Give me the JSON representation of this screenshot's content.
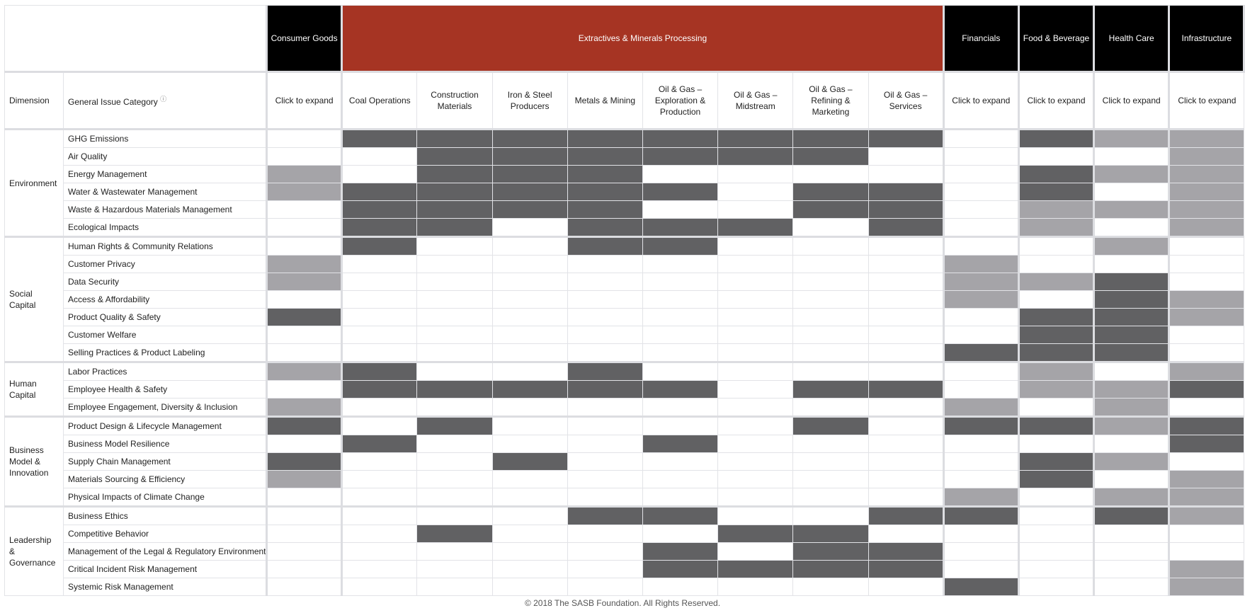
{
  "colors": {
    "sector_header": "#000000",
    "extractives_header": "#a63423",
    "dark": "#616163",
    "light": "#a5a4a8",
    "empty": "#ffffff"
  },
  "header": {
    "dimension_label": "Dimension",
    "category_label": "General Issue Category",
    "info_icon": "info-icon",
    "info_glyph": "ⓘ",
    "sectors": [
      {
        "name": "Consumer Goods",
        "span": 1,
        "red": false
      },
      {
        "name": "Extractives & Minerals Processing",
        "span": 8,
        "red": true
      },
      {
        "name": "Financials",
        "span": 1,
        "red": false
      },
      {
        "name": "Food & Beverage",
        "span": 1,
        "red": false
      },
      {
        "name": "Health Care",
        "span": 1,
        "red": false
      },
      {
        "name": "Infrastructure",
        "span": 1,
        "red": false
      }
    ],
    "columns": [
      {
        "label": "Click to expand",
        "group_start": true
      },
      {
        "label": "Coal Operations",
        "group_start": true
      },
      {
        "label": "Construction Materials"
      },
      {
        "label": "Iron & Steel Producers"
      },
      {
        "label": "Metals & Mining"
      },
      {
        "label": "Oil & Gas – Exploration & Production"
      },
      {
        "label": "Oil & Gas – Midstream"
      },
      {
        "label": "Oil & Gas – Refining & Marketing"
      },
      {
        "label": "Oil & Gas – Services"
      },
      {
        "label": "Click to expand",
        "group_start": true
      },
      {
        "label": "Click to expand",
        "group_start": true
      },
      {
        "label": "Click to expand",
        "group_start": true
      },
      {
        "label": "Click to expand",
        "group_start": true
      }
    ]
  },
  "legend_levels": {
    "0": "not material",
    "1": "light shade",
    "2": "dark shade"
  },
  "dimensions": [
    {
      "name": "Environment",
      "rows": [
        {
          "category": "GHG Emissions",
          "cells": [
            0,
            2,
            2,
            2,
            2,
            2,
            2,
            2,
            2,
            0,
            2,
            1,
            1
          ]
        },
        {
          "category": "Air Quality",
          "cells": [
            0,
            0,
            2,
            2,
            2,
            2,
            2,
            2,
            0,
            0,
            0,
            0,
            1
          ]
        },
        {
          "category": "Energy Management",
          "cells": [
            1,
            0,
            2,
            2,
            2,
            0,
            0,
            0,
            0,
            0,
            2,
            1,
            1
          ]
        },
        {
          "category": "Water & Wastewater Management",
          "cells": [
            1,
            2,
            2,
            2,
            2,
            2,
            0,
            2,
            2,
            0,
            2,
            0,
            1
          ]
        },
        {
          "category": "Waste & Hazardous Materials Management",
          "cells": [
            0,
            2,
            2,
            2,
            2,
            0,
            0,
            2,
            2,
            0,
            1,
            1,
            1
          ]
        },
        {
          "category": "Ecological Impacts",
          "cells": [
            0,
            2,
            2,
            0,
            2,
            2,
            2,
            0,
            2,
            0,
            1,
            0,
            1
          ]
        }
      ]
    },
    {
      "name": "Social Capital",
      "rows": [
        {
          "category": "Human Rights & Community Relations",
          "cells": [
            0,
            2,
            0,
            0,
            2,
            2,
            0,
            0,
            0,
            0,
            0,
            1,
            0
          ]
        },
        {
          "category": "Customer Privacy",
          "cells": [
            1,
            0,
            0,
            0,
            0,
            0,
            0,
            0,
            0,
            1,
            0,
            0,
            0
          ]
        },
        {
          "category": "Data Security",
          "cells": [
            1,
            0,
            0,
            0,
            0,
            0,
            0,
            0,
            0,
            1,
            1,
            2,
            0
          ]
        },
        {
          "category": "Access & Affordability",
          "cells": [
            0,
            0,
            0,
            0,
            0,
            0,
            0,
            0,
            0,
            1,
            0,
            2,
            1
          ]
        },
        {
          "category": "Product Quality & Safety",
          "cells": [
            2,
            0,
            0,
            0,
            0,
            0,
            0,
            0,
            0,
            0,
            2,
            2,
            1
          ]
        },
        {
          "category": "Customer Welfare",
          "cells": [
            0,
            0,
            0,
            0,
            0,
            0,
            0,
            0,
            0,
            0,
            2,
            2,
            0
          ]
        },
        {
          "category": "Selling Practices & Product Labeling",
          "cells": [
            0,
            0,
            0,
            0,
            0,
            0,
            0,
            0,
            0,
            2,
            2,
            2,
            0
          ]
        }
      ]
    },
    {
      "name": "Human Capital",
      "rows": [
        {
          "category": "Labor Practices",
          "cells": [
            1,
            2,
            0,
            0,
            2,
            0,
            0,
            0,
            0,
            0,
            1,
            0,
            1
          ]
        },
        {
          "category": "Employee Health & Safety",
          "cells": [
            0,
            2,
            2,
            2,
            2,
            2,
            0,
            2,
            2,
            0,
            1,
            1,
            2
          ]
        },
        {
          "category": "Employee Engagement, Diversity & Inclusion",
          "cells": [
            1,
            0,
            0,
            0,
            0,
            0,
            0,
            0,
            0,
            1,
            0,
            1,
            0
          ]
        }
      ]
    },
    {
      "name": "Business Model & Innovation",
      "rows": [
        {
          "category": "Product Design & Lifecycle Management",
          "cells": [
            2,
            0,
            2,
            0,
            0,
            0,
            0,
            2,
            0,
            2,
            2,
            1,
            2
          ]
        },
        {
          "category": "Business Model Resilience",
          "cells": [
            0,
            2,
            0,
            0,
            0,
            2,
            0,
            0,
            0,
            0,
            0,
            0,
            2
          ]
        },
        {
          "category": "Supply Chain Management",
          "cells": [
            2,
            0,
            0,
            2,
            0,
            0,
            0,
            0,
            0,
            0,
            2,
            1,
            0
          ]
        },
        {
          "category": "Materials Sourcing & Efficiency",
          "cells": [
            1,
            0,
            0,
            0,
            0,
            0,
            0,
            0,
            0,
            0,
            2,
            0,
            1
          ]
        },
        {
          "category": "Physical Impacts of Climate Change",
          "cells": [
            0,
            0,
            0,
            0,
            0,
            0,
            0,
            0,
            0,
            1,
            0,
            1,
            1
          ]
        }
      ]
    },
    {
      "name": "Leadership & Governance",
      "rows": [
        {
          "category": "Business Ethics",
          "cells": [
            0,
            0,
            0,
            0,
            2,
            2,
            0,
            0,
            2,
            2,
            0,
            2,
            1
          ]
        },
        {
          "category": "Competitive Behavior",
          "cells": [
            0,
            0,
            2,
            0,
            0,
            0,
            2,
            2,
            0,
            0,
            0,
            0,
            0
          ]
        },
        {
          "category": "Management of the Legal & Regulatory Environment",
          "cells": [
            0,
            0,
            0,
            0,
            0,
            2,
            0,
            2,
            2,
            0,
            0,
            0,
            0
          ]
        },
        {
          "category": "Critical Incident Risk Management",
          "cells": [
            0,
            0,
            0,
            0,
            0,
            2,
            2,
            2,
            2,
            0,
            0,
            0,
            1
          ]
        },
        {
          "category": "Systemic Risk Management",
          "cells": [
            0,
            0,
            0,
            0,
            0,
            0,
            0,
            0,
            0,
            2,
            0,
            0,
            1
          ]
        }
      ]
    }
  ],
  "footer": "© 2018 The SASB Foundation. All Rights Reserved."
}
